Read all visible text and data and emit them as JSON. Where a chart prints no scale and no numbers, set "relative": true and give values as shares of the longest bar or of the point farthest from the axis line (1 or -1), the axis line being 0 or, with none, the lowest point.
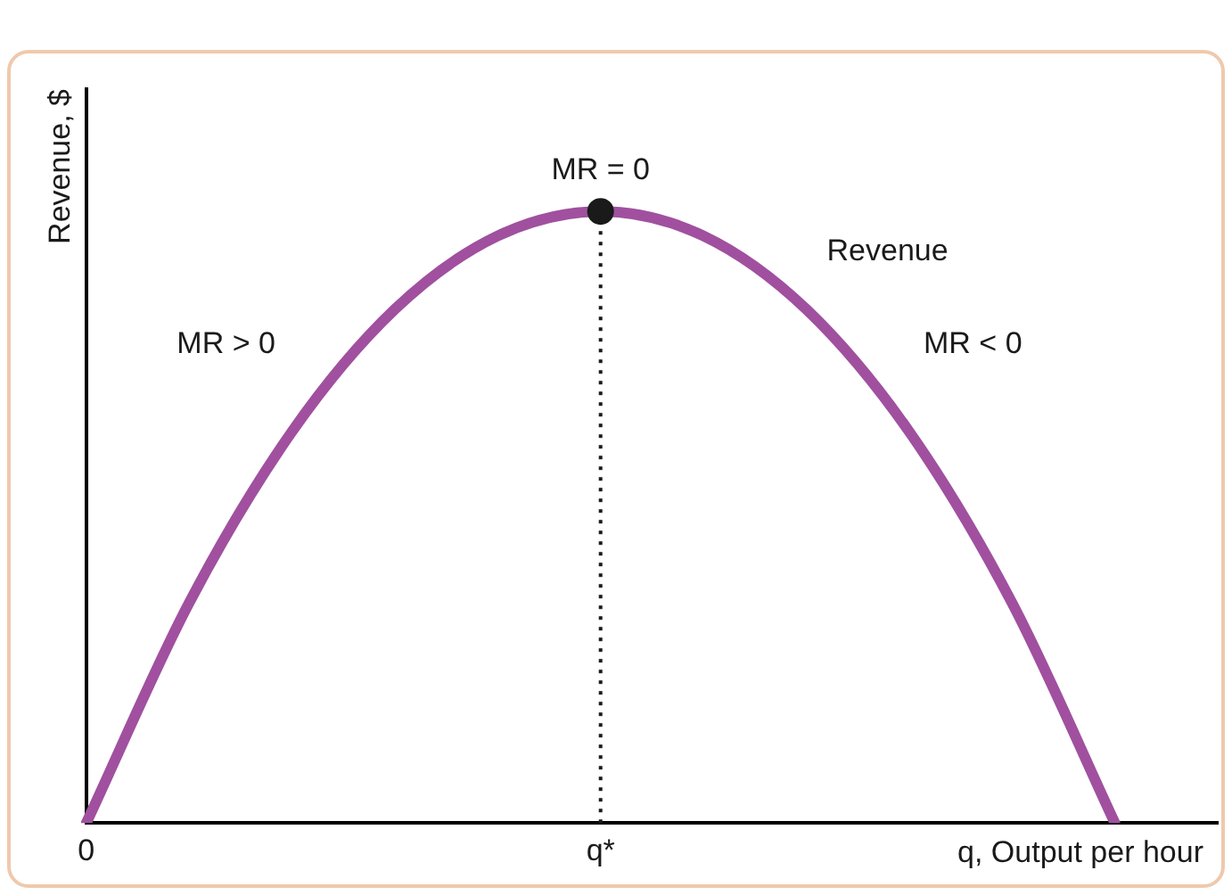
{
  "chart_data": {
    "type": "line",
    "relative": true,
    "ylabel": "Revenue, $",
    "xlabel": "q, Output per hour",
    "categories": [
      "0",
      null,
      null,
      null,
      null,
      "q*",
      null,
      null,
      null,
      null,
      null,
      null
    ],
    "series": [
      {
        "name": "Revenue",
        "color": "#a0509f",
        "values": [
          0,
          0.36,
          0.64,
          0.84,
          0.96,
          1,
          0.96,
          0.84,
          0.64,
          0.36,
          0,
          null
        ]
      },
      {
        "type": "scatter",
        "color": "#1a1a1a",
        "x": [
          "q*"
        ],
        "values": [
          1
        ]
      }
    ],
    "ref_lines": [
      {
        "axis": "x",
        "value": "q*",
        "line_style": "dotted",
        "color": "#1a1a1a"
      }
    ],
    "annotations": [
      {
        "text": "MR = 0",
        "x": "q*",
        "y": 1
      },
      "MR > 0",
      "MR < 0"
    ],
    "line_style": "solid",
    "grid": false,
    "legend": false
  }
}
